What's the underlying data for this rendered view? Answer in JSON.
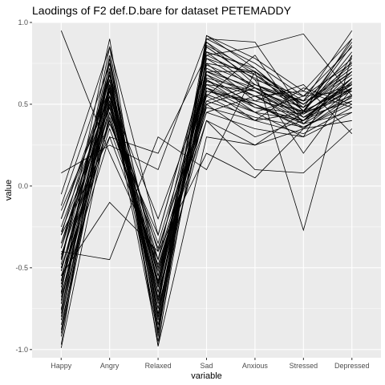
{
  "chart_data": {
    "type": "line",
    "title": "Laodings of F2 def.D.bare for dataset PETEMADDY",
    "xlabel": "variable",
    "ylabel": "value",
    "categories": [
      "Happy",
      "Angry",
      "Relaxed",
      "Sad",
      "Anxious",
      "Stressed",
      "Depressed"
    ],
    "ylim": [
      -1.05,
      1.0
    ],
    "yticks": [
      -1.0,
      -0.5,
      0.0,
      0.5,
      1.0
    ],
    "ytick_labels": [
      "-1.0",
      "-0.5",
      "0.0",
      "0.5",
      "1.0"
    ],
    "grid": true,
    "legend": "none",
    "colors": {
      "panel": "#ebebeb",
      "grid": "#ffffff",
      "line": "#000000"
    },
    "series": [
      {
        "values": [
          0.95,
          0.2,
          -0.45,
          0.82,
          0.6,
          0.45,
          0.55
        ]
      },
      {
        "values": [
          0.08,
          0.25,
          0.1,
          0.9,
          0.88,
          0.45,
          0.62
        ]
      },
      {
        "values": [
          -0.05,
          0.85,
          -0.3,
          0.75,
          0.7,
          0.5,
          0.7
        ]
      },
      {
        "values": [
          -0.12,
          0.75,
          -0.55,
          0.7,
          0.55,
          0.4,
          0.6
        ]
      },
      {
        "values": [
          -0.2,
          0.6,
          -0.7,
          0.65,
          0.5,
          0.35,
          0.55
        ]
      },
      {
        "values": [
          -0.25,
          0.55,
          -0.4,
          0.6,
          0.45,
          0.3,
          0.8
        ]
      },
      {
        "values": [
          -0.3,
          0.7,
          -0.85,
          0.85,
          0.65,
          0.55,
          0.75
        ]
      },
      {
        "values": [
          -0.35,
          0.5,
          -0.6,
          0.55,
          0.4,
          0.6,
          0.5
        ]
      },
      {
        "values": [
          -0.38,
          0.65,
          -0.75,
          0.92,
          0.72,
          0.48,
          0.88
        ]
      },
      {
        "values": [
          -0.42,
          0.4,
          -0.5,
          0.5,
          0.6,
          0.42,
          0.52
        ]
      },
      {
        "values": [
          -0.45,
          0.6,
          -0.65,
          0.68,
          0.55,
          0.38,
          0.66
        ]
      },
      {
        "values": [
          -0.48,
          0.9,
          -0.9,
          0.88,
          0.62,
          0.52,
          0.95
        ]
      },
      {
        "values": [
          -0.5,
          0.45,
          -0.35,
          0.62,
          0.48,
          0.44,
          0.58
        ]
      },
      {
        "values": [
          -0.52,
          0.55,
          -0.7,
          0.72,
          0.58,
          0.4,
          0.64
        ]
      },
      {
        "values": [
          -0.55,
          0.35,
          -0.45,
          0.45,
          0.35,
          0.3,
          0.45
        ]
      },
      {
        "values": [
          -0.58,
          0.75,
          -0.8,
          0.78,
          0.68,
          0.5,
          0.72
        ]
      },
      {
        "values": [
          -0.6,
          0.62,
          -0.62,
          0.58,
          0.52,
          0.46,
          0.6
        ]
      },
      {
        "values": [
          -0.62,
          0.48,
          -0.55,
          0.52,
          0.42,
          0.36,
          0.5
        ]
      },
      {
        "values": [
          -0.65,
          0.8,
          -0.88,
          0.9,
          0.75,
          0.55,
          0.85
        ]
      },
      {
        "values": [
          -0.68,
          0.58,
          -0.72,
          0.66,
          0.58,
          0.42,
          0.62
        ]
      },
      {
        "values": [
          -0.7,
          0.52,
          -0.6,
          0.6,
          0.5,
          0.38,
          0.56
        ]
      },
      {
        "values": [
          -0.72,
          0.68,
          -0.78,
          0.74,
          0.62,
          0.48,
          0.7
        ]
      },
      {
        "values": [
          -0.75,
          0.42,
          -0.52,
          0.48,
          0.4,
          0.32,
          0.48
        ]
      },
      {
        "values": [
          -0.78,
          0.72,
          -0.92,
          0.86,
          0.7,
          0.52,
          0.78
        ]
      },
      {
        "values": [
          -0.8,
          0.6,
          -0.68,
          0.64,
          0.55,
          0.45,
          0.63
        ]
      },
      {
        "values": [
          -0.85,
          0.5,
          -0.58,
          0.56,
          0.45,
          0.4,
          0.54
        ]
      },
      {
        "values": [
          -0.88,
          0.65,
          -0.82,
          0.8,
          0.66,
          0.5,
          0.74
        ]
      },
      {
        "values": [
          -0.92,
          0.55,
          -0.95,
          0.7,
          0.6,
          0.44,
          0.66
        ]
      },
      {
        "values": [
          -0.97,
          0.78,
          -0.98,
          0.92,
          0.78,
          0.58,
          0.9
        ]
      },
      {
        "values": [
          -0.99,
          0.45,
          -0.65,
          0.4,
          0.25,
          0.35,
          0.4
        ]
      },
      {
        "values": [
          -0.4,
          -0.45,
          0.3,
          0.1,
          0.7,
          -0.27,
          0.8
        ]
      },
      {
        "values": [
          -0.55,
          -0.1,
          -0.4,
          0.2,
          0.05,
          0.35,
          0.6
        ]
      },
      {
        "values": [
          -0.3,
          0.3,
          0.2,
          0.8,
          0.85,
          0.93,
          0.55
        ]
      },
      {
        "values": [
          -0.65,
          0.85,
          -0.98,
          0.3,
          0.25,
          0.45,
          0.9
        ]
      },
      {
        "values": [
          -0.45,
          0.7,
          -0.5,
          0.4,
          0.1,
          0.08,
          0.35
        ]
      },
      {
        "values": [
          -0.2,
          0.65,
          -0.6,
          0.85,
          0.65,
          0.2,
          0.6
        ]
      },
      {
        "values": [
          -0.35,
          0.58,
          -0.45,
          0.55,
          0.8,
          0.38,
          0.45
        ]
      },
      {
        "values": [
          -0.5,
          0.38,
          -0.3,
          0.75,
          0.52,
          0.62,
          0.32
        ]
      },
      {
        "values": [
          -0.6,
          0.52,
          -0.75,
          0.5,
          0.3,
          0.4,
          0.7
        ]
      },
      {
        "values": [
          -0.72,
          0.62,
          -0.55,
          0.65,
          0.45,
          0.55,
          0.58
        ]
      },
      {
        "values": [
          -0.15,
          0.55,
          -0.2,
          0.62,
          0.58,
          0.48,
          0.68
        ]
      },
      {
        "values": [
          -0.28,
          0.48,
          -0.65,
          0.7,
          0.7,
          0.42,
          0.6
        ]
      },
      {
        "values": [
          -0.44,
          0.68,
          -0.85,
          0.58,
          0.5,
          0.36,
          0.52
        ]
      },
      {
        "values": [
          -0.58,
          0.4,
          -0.38,
          0.52,
          0.62,
          0.5,
          0.72
        ]
      },
      {
        "values": [
          -0.82,
          0.58,
          -0.7,
          0.6,
          0.4,
          0.45,
          0.82
        ]
      },
      {
        "values": [
          -0.66,
          0.3,
          -0.48,
          0.45,
          0.55,
          0.58,
          0.48
        ]
      },
      {
        "values": [
          -0.52,
          0.62,
          -0.62,
          0.82,
          0.72,
          0.46,
          0.76
        ]
      },
      {
        "values": [
          -0.38,
          0.52,
          -0.58,
          0.68,
          0.48,
          0.4,
          0.66
        ]
      },
      {
        "values": [
          -0.76,
          0.7,
          -0.8,
          0.78,
          0.6,
          0.52,
          0.62
        ]
      },
      {
        "values": [
          -0.9,
          0.6,
          -0.9,
          0.88,
          0.68,
          0.46,
          0.86
        ]
      }
    ]
  }
}
